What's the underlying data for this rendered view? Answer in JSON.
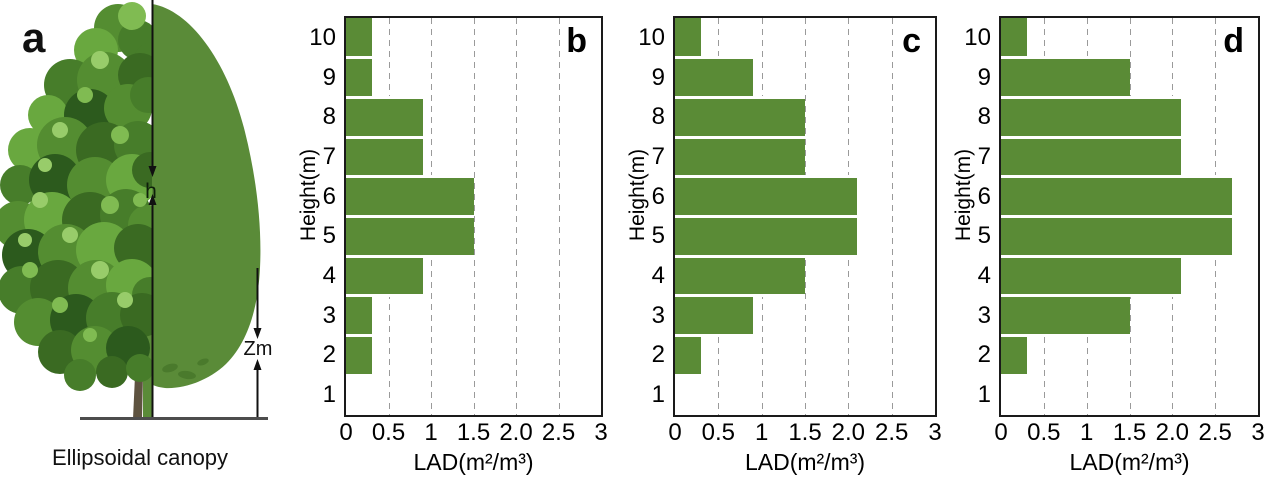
{
  "figure": {
    "background": "#ffffff",
    "panel_a": {
      "label": "a",
      "caption": "Ellipsoidal canopy",
      "height_annotation": "h",
      "zm_annotation": "Zm",
      "canopy_color": "#5a8b38",
      "trunk_color": "#5e5340",
      "ground_color": "#4d4d4d"
    },
    "colors": {
      "bar_green": "#5a8b36",
      "gridline": "#9a9a9a",
      "axis": "#1a1a1a",
      "text": "#000000"
    }
  },
  "chart_data": [
    {
      "type": "bar",
      "orientation": "horizontal",
      "panel_label": "b",
      "title": "",
      "xlabel": "LAD(m²/m³)",
      "ylabel": "Height(m)",
      "categories": [
        "10",
        "9",
        "8",
        "7",
        "6",
        "5",
        "4",
        "3",
        "2",
        "1"
      ],
      "values": [
        0.3,
        0.3,
        0.9,
        0.9,
        1.5,
        1.5,
        0.9,
        0.3,
        0.3,
        0
      ],
      "xlim": [
        0,
        3
      ],
      "xticks": [
        {
          "v": 0,
          "t": "0"
        },
        {
          "v": 0.5,
          "t": "0.5"
        },
        {
          "v": 1,
          "t": "1"
        },
        {
          "v": 1.5,
          "t": "1.5"
        },
        {
          "v": 2,
          "t": "2.0"
        },
        {
          "v": 2.5,
          "t": "2.5"
        },
        {
          "v": 3,
          "t": "3"
        }
      ],
      "grid_values": [
        0.5,
        1,
        1.5,
        2,
        2.5
      ],
      "grid": "dashed-vertical",
      "legend": false,
      "bar_color": "#5a8b36"
    },
    {
      "type": "bar",
      "orientation": "horizontal",
      "panel_label": "c",
      "title": "",
      "xlabel": "LAD(m²/m³)",
      "ylabel": "Height(m)",
      "categories": [
        "10",
        "9",
        "8",
        "7",
        "6",
        "5",
        "4",
        "3",
        "2",
        "1"
      ],
      "values": [
        0.3,
        0.9,
        1.5,
        1.5,
        2.1,
        2.1,
        1.5,
        0.9,
        0.3,
        0
      ],
      "xlim": [
        0,
        3
      ],
      "xticks": [
        {
          "v": 0,
          "t": "0"
        },
        {
          "v": 0.5,
          "t": "0.5"
        },
        {
          "v": 1,
          "t": "1"
        },
        {
          "v": 1.5,
          "t": "1.5"
        },
        {
          "v": 2,
          "t": "2.0"
        },
        {
          "v": 2.5,
          "t": "2.5"
        },
        {
          "v": 3,
          "t": "3"
        }
      ],
      "grid_values": [
        0.5,
        1,
        1.5,
        2,
        2.5
      ],
      "grid": "dashed-vertical",
      "legend": false,
      "bar_color": "#5a8b36"
    },
    {
      "type": "bar",
      "orientation": "horizontal",
      "panel_label": "d",
      "title": "",
      "xlabel": "LAD(m²/m³)",
      "ylabel": "Height(m)",
      "categories": [
        "10",
        "9",
        "8",
        "7",
        "6",
        "5",
        "4",
        "3",
        "2",
        "1"
      ],
      "values": [
        0.3,
        1.5,
        2.1,
        2.1,
        2.7,
        2.7,
        2.1,
        1.5,
        0.3,
        0
      ],
      "xlim": [
        0,
        3
      ],
      "xticks": [
        {
          "v": 0,
          "t": "0"
        },
        {
          "v": 0.5,
          "t": "0.5"
        },
        {
          "v": 1,
          "t": "1"
        },
        {
          "v": 1.5,
          "t": "1.5"
        },
        {
          "v": 2,
          "t": "2.0"
        },
        {
          "v": 2.5,
          "t": "2.5"
        },
        {
          "v": 3,
          "t": "3"
        }
      ],
      "grid_values": [
        0.5,
        1,
        1.5,
        2,
        2.5
      ],
      "grid": "dashed-vertical",
      "legend": false,
      "bar_color": "#5a8b36"
    }
  ]
}
